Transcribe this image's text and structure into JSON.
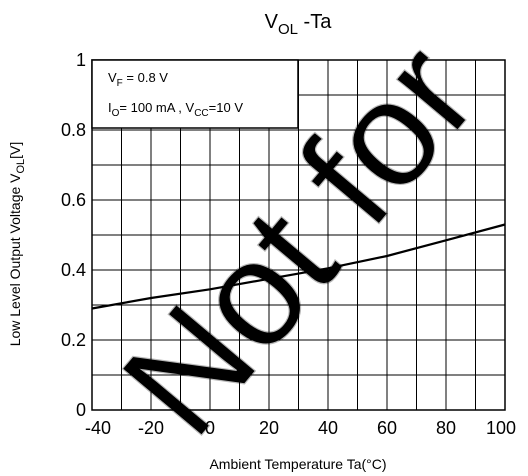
{
  "chart_data": {
    "type": "line",
    "title": {
      "main": "V",
      "main_sub": "OL",
      "rest": " -Ta"
    },
    "xlabel": "Ambient Temperature Ta(°C)",
    "ylabel": {
      "main": "Low Level Output Voltage V",
      "sub": "OL",
      "tail": "[V]"
    },
    "xlim": [
      -40,
      100
    ],
    "ylim": [
      0,
      1
    ],
    "x_ticks": [
      -40,
      -20,
      0,
      20,
      40,
      60,
      80,
      100
    ],
    "y_ticks": [
      0,
      0.2,
      0.4,
      0.6,
      0.8,
      1
    ],
    "x_tick_labels": [
      "-40",
      "-20",
      "0",
      "20",
      "40",
      "60",
      "80",
      "100"
    ],
    "y_tick_labels": [
      "0",
      "0.2",
      "0.4",
      "0.6",
      "0.8",
      "1"
    ],
    "grid": true,
    "x_minor_step": 10,
    "y_minor_step": 0.1,
    "annotation": {
      "line1": {
        "main": "V",
        "sub": "F",
        "rest": " = 0.8 V"
      },
      "line2": {
        "main": "I",
        "sub": "O",
        "mid": "= 100 mA , V",
        "sub2": "CC",
        "rest": "=10 V"
      }
    },
    "series": [
      {
        "color": "#000000",
        "x": [
          -40,
          -20,
          0,
          20,
          40,
          60,
          80,
          100
        ],
        "y": [
          0.29,
          0.32,
          0.345,
          0.375,
          0.405,
          0.44,
          0.485,
          0.53
        ]
      }
    ],
    "watermark": "Not for"
  }
}
